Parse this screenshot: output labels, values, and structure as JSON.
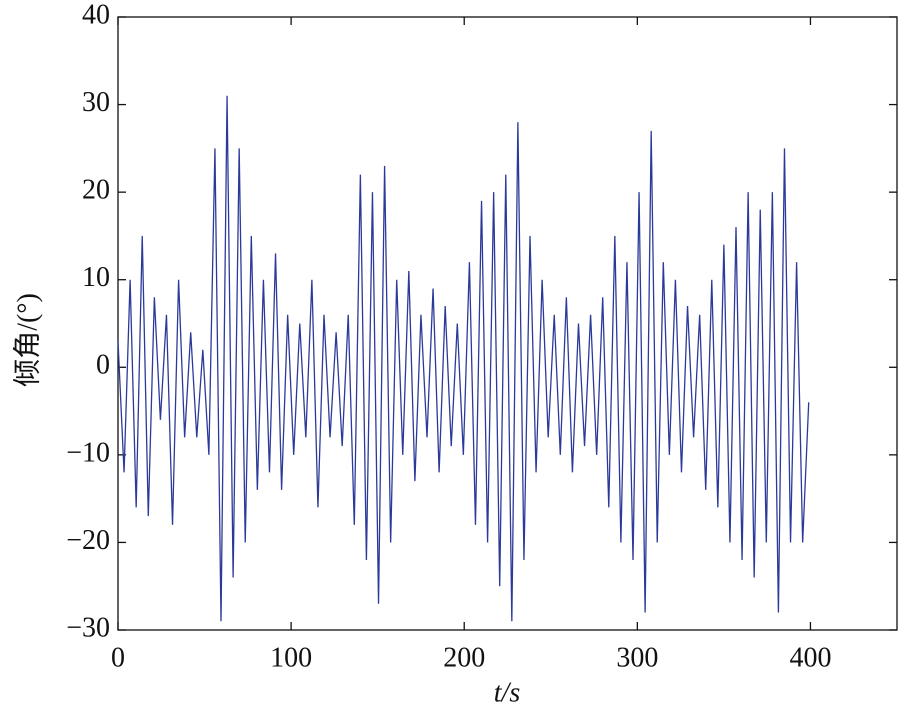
{
  "chart_data": {
    "type": "line",
    "xlabel": "t/s",
    "ylabel": "倾角/(°)",
    "x": [
      0,
      3.5,
      7,
      10.5,
      14,
      17.5,
      21,
      24.5,
      28,
      31.5,
      35,
      38.5,
      42,
      45.5,
      49,
      52.5,
      56,
      59.5,
      63,
      66.5,
      70,
      73.5,
      77,
      80.5,
      84,
      87.5,
      91,
      94.5,
      98,
      101.5,
      105,
      108.5,
      112,
      115.5,
      119,
      122.5,
      126,
      129.5,
      133,
      136.5,
      140,
      143.5,
      147,
      150.5,
      154,
      157.5,
      161,
      164.5,
      168,
      171.5,
      175,
      178.5,
      182,
      185.5,
      189,
      192.5,
      196,
      199.5,
      203,
      206.5,
      210,
      213.5,
      217,
      220.5,
      224,
      227.5,
      231,
      234.5,
      238,
      241.5,
      245,
      248.5,
      252,
      255.5,
      259,
      262.5,
      266,
      269.5,
      273,
      276.5,
      280,
      283.5,
      287,
      290.5,
      294,
      297.5,
      301,
      304.5,
      308,
      311.5,
      315,
      318.5,
      322,
      325.5,
      329,
      332.5,
      336,
      339.5,
      343,
      346.5,
      350,
      353.5,
      357,
      360.5,
      364,
      367.5,
      371,
      374.5,
      378,
      381.5,
      385,
      388.5,
      392,
      395.5,
      399
    ],
    "values": [
      3,
      -12,
      10,
      -16,
      15,
      -17,
      8,
      -6,
      6,
      -18,
      10,
      -8,
      4,
      -8,
      2,
      -10,
      25,
      -29,
      31,
      -24,
      25,
      -20,
      15,
      -14,
      10,
      -12,
      13,
      -14,
      6,
      -10,
      5,
      -8,
      10,
      -16,
      6,
      -8,
      4,
      -9,
      6,
      -18,
      22,
      -22,
      20,
      -27,
      23,
      -20,
      10,
      -10,
      11,
      -13,
      6,
      -8,
      9,
      -12,
      7,
      -9,
      5,
      -10,
      12,
      -18,
      19,
      -20,
      20,
      -25,
      22,
      -29,
      28,
      -22,
      15,
      -12,
      10,
      -8,
      6,
      -10,
      8,
      -12,
      5,
      -9,
      6,
      -10,
      8,
      -16,
      15,
      -20,
      12,
      -22,
      20,
      -28,
      27,
      -20,
      12,
      -10,
      10,
      -12,
      7,
      -8,
      6,
      -14,
      10,
      -16,
      14,
      -20,
      16,
      -22,
      20,
      -24,
      18,
      -20,
      20,
      -28,
      25,
      -20,
      12,
      -20,
      -4
    ],
    "color": "#2b3a9a",
    "xlim": [
      0,
      450
    ],
    "xticks": [
      0,
      100,
      200,
      300,
      400
    ],
    "ylim": [
      -30,
      40
    ],
    "yticks": [
      {
        "value": -30,
        "label": "−30"
      },
      {
        "value": -20,
        "label": "−20"
      },
      {
        "value": -10,
        "label": "−10"
      },
      0,
      10,
      20,
      30,
      40
    ]
  }
}
